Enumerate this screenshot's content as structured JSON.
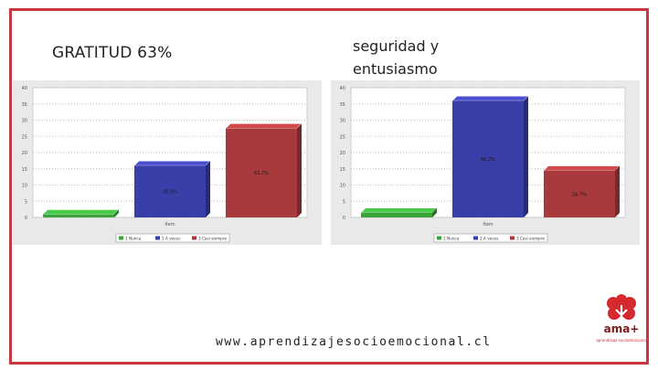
{
  "slide": {
    "left_title": "GRATITUD 63%",
    "right_title_line1": "seguridad y",
    "right_title_line2": "entusiasmo",
    "footer_url": "www.aprendizajesocioemocional.cl",
    "logo_text": "ama+",
    "logo_subtext": "aprendizaje socioemocional"
  },
  "colors": {
    "frame": "#c8373d",
    "series_1": "#3aa33a",
    "series_2": "#3a3ea8",
    "series_3": "#a83a3d"
  },
  "chart_data": [
    {
      "type": "bar",
      "title": "",
      "categories": [
        "1 Nunca",
        "2 A veces",
        "3 Casi siempre"
      ],
      "values": [
        1,
        16,
        27.5
      ],
      "data_labels": [
        "",
        "35.2%",
        "63.2%"
      ],
      "x_tick": "ítem",
      "ylim": [
        0,
        40
      ],
      "yticks": [
        0,
        5,
        10,
        15,
        20,
        25,
        30,
        35,
        40
      ],
      "grid": true,
      "legend": [
        "1 Nunca",
        "2 A veces",
        "3 Casi siempre"
      ],
      "legend_position": "bottom"
    },
    {
      "type": "bar",
      "title": "",
      "categories": [
        "1 Nunca",
        "2 A veces",
        "3 Casi siempre"
      ],
      "values": [
        1.5,
        36,
        14.5
      ],
      "data_labels": [
        "",
        "66.2%",
        "26.7%"
      ],
      "x_tick": "ítem",
      "ylim": [
        0,
        40
      ],
      "yticks": [
        0,
        5,
        10,
        15,
        20,
        25,
        30,
        35,
        40
      ],
      "grid": true,
      "legend": [
        "1 Nunca",
        "2 A veces",
        "3 Casi siempre"
      ],
      "legend_position": "bottom"
    }
  ]
}
